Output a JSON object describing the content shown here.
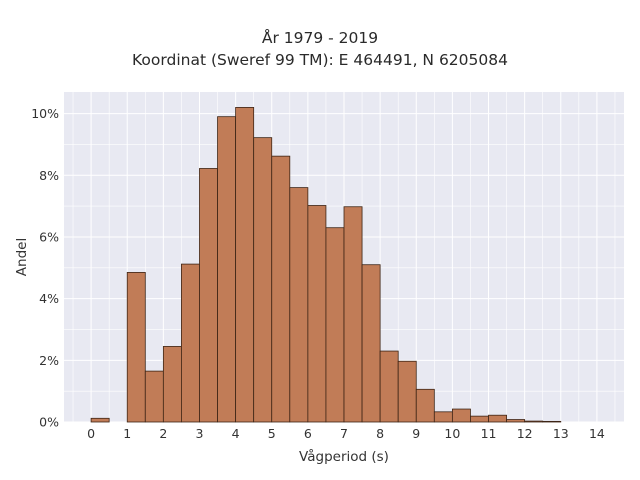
{
  "chart_data": {
    "type": "bar",
    "title": "År 1979 - 2019",
    "subtitle": "Koordinat (Sweref 99 TM): E 464491, N 6205084",
    "xlabel": "Vågperiod (s)",
    "ylabel": "Andel",
    "xlim": [
      -0.75,
      14.75
    ],
    "ylim": [
      0,
      10.7
    ],
    "x_ticks": [
      0,
      1,
      2,
      3,
      4,
      5,
      6,
      7,
      8,
      9,
      10,
      11,
      12,
      13,
      14
    ],
    "y_ticks": [
      0,
      2,
      4,
      6,
      8,
      10
    ],
    "y_tick_suffix": "%",
    "bin_width": 0.5,
    "bin_starts": [
      0,
      1,
      1.5,
      2,
      2.5,
      3,
      3.5,
      4,
      4.5,
      5,
      5.5,
      6,
      6.5,
      7,
      7.5,
      8,
      8.5,
      9,
      9.5,
      10,
      10.5,
      11,
      11.5,
      12,
      12.5
    ],
    "values": [
      0.12,
      4.85,
      1.65,
      2.45,
      5.12,
      8.22,
      9.9,
      10.2,
      9.22,
      8.62,
      7.6,
      7.02,
      6.3,
      6.98,
      5.1,
      2.3,
      1.97,
      1.06,
      0.33,
      0.42,
      0.19,
      0.22,
      0.08,
      0.03,
      0.02
    ],
    "grid": true,
    "colors": {
      "bar_fill": "#c17c57",
      "bar_edge": "#3d2415",
      "plot_bg": "#e8e9f2",
      "grid": "#ffffff"
    }
  }
}
